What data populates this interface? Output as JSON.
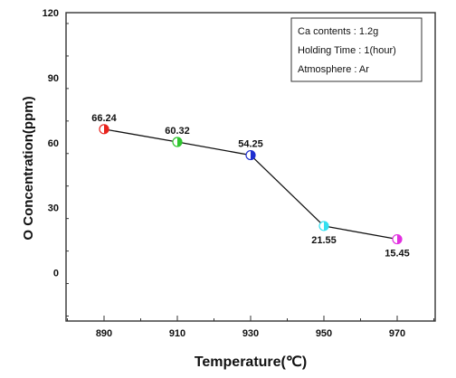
{
  "chart_data": {
    "type": "line",
    "xlabel": "Temperature(℃)",
    "ylabel": "O Concentration(ppm)",
    "ylim": [
      -20,
      120
    ],
    "yticks": [
      0,
      30,
      60,
      90,
      120
    ],
    "x": [
      890,
      910,
      930,
      950,
      970
    ],
    "xticks": [
      "890",
      "910",
      "930",
      "950",
      "970"
    ],
    "series": [
      {
        "values": [
          66.24,
          60.32,
          54.25,
          21.55,
          15.45
        ],
        "value_labels": [
          "66.24",
          "60.32",
          "54.25",
          "21.55",
          "15.45"
        ],
        "marker_colors": [
          "#e8231d",
          "#2fc62f",
          "#1f2fd0",
          "#33e0f0",
          "#e22fe0"
        ]
      }
    ],
    "legend": {
      "position": "top-right",
      "lines": [
        "Ca contents : 1.2g",
        "Holding Time : 1(hour)",
        "Atmosphere : Ar"
      ]
    },
    "grid": false
  }
}
